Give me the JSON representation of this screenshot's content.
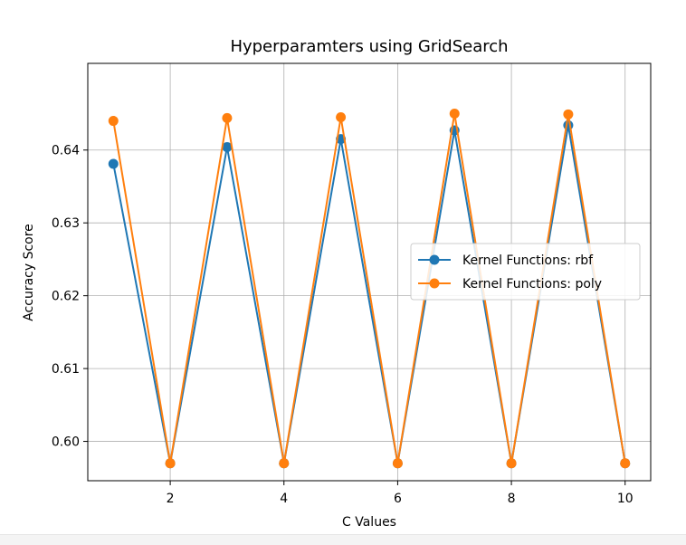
{
  "chart_data": {
    "type": "line",
    "title": "Hyperparamters using GridSearch",
    "xlabel": "C Values",
    "ylabel": "Accuracy Score",
    "x": [
      1,
      2,
      3,
      4,
      5,
      6,
      7,
      8,
      9,
      10
    ],
    "xlim": [
      0.55,
      10.45
    ],
    "ylim": [
      0.5946,
      0.6519
    ],
    "xticks": [
      2,
      4,
      6,
      8,
      10
    ],
    "yticks": [
      0.6,
      0.61,
      0.62,
      0.63,
      0.64
    ],
    "xtick_labels": [
      "2",
      "4",
      "6",
      "8",
      "10"
    ],
    "ytick_labels": [
      "0.60",
      "0.61",
      "0.62",
      "0.63",
      "0.64"
    ],
    "grid": true,
    "legend_position": "center-right",
    "series": [
      {
        "name": "Kernel Functions: rbf",
        "color": "#1f77b4",
        "marker": "circle",
        "values": [
          0.6381,
          0.597,
          0.6404,
          0.597,
          0.6415,
          0.597,
          0.6427,
          0.597,
          0.6434,
          0.597
        ]
      },
      {
        "name": "Kernel Functions: poly",
        "color": "#ff7f0e",
        "marker": "circle",
        "values": [
          0.644,
          0.597,
          0.6444,
          0.597,
          0.6445,
          0.597,
          0.645,
          0.597,
          0.6449,
          0.597
        ]
      }
    ]
  }
}
